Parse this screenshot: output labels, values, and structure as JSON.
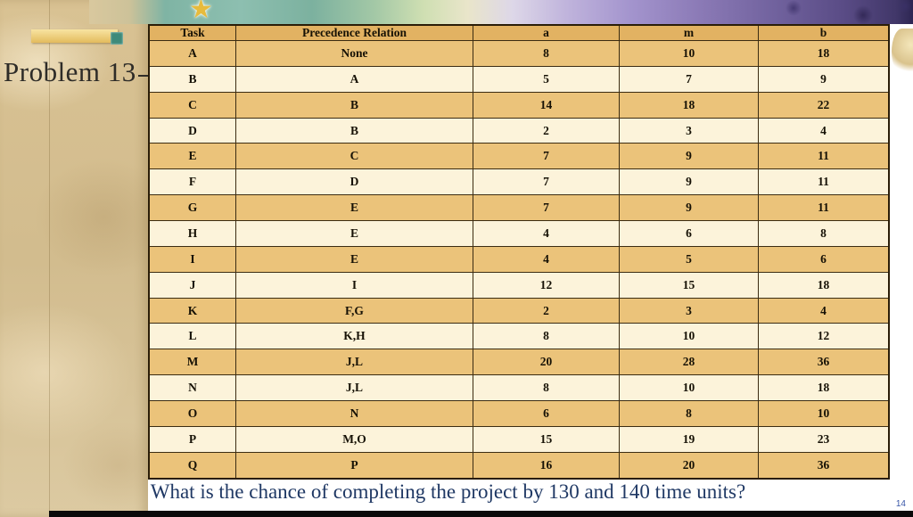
{
  "slide": {
    "title": "Problem 13",
    "question": "What is the chance of completing the project by 130 and 140 time units?",
    "page_number": "14"
  },
  "icons": {
    "star": "★"
  },
  "table": {
    "headers": [
      "Task",
      "Precedence Relation",
      "a",
      "m",
      "b"
    ],
    "rows": [
      [
        "A",
        "None",
        "8",
        "10",
        "18"
      ],
      [
        "B",
        "A",
        "5",
        "7",
        "9"
      ],
      [
        "C",
        "B",
        "14",
        "18",
        "22"
      ],
      [
        "D",
        "B",
        "2",
        "3",
        "4"
      ],
      [
        "E",
        "C",
        "7",
        "9",
        "11"
      ],
      [
        "F",
        "D",
        "7",
        "9",
        "11"
      ],
      [
        "G",
        "E",
        "7",
        "9",
        "11"
      ],
      [
        "H",
        "E",
        "4",
        "6",
        "8"
      ],
      [
        "I",
        "E",
        "4",
        "5",
        "6"
      ],
      [
        "J",
        "I",
        "12",
        "15",
        "18"
      ],
      [
        "K",
        "F,G",
        "2",
        "3",
        "4"
      ],
      [
        "L",
        "K,H",
        "8",
        "10",
        "12"
      ],
      [
        "M",
        "J,L",
        "20",
        "28",
        "36"
      ],
      [
        "N",
        "J,L",
        "8",
        "10",
        "18"
      ],
      [
        "O",
        "N",
        "6",
        "8",
        "10"
      ],
      [
        "P",
        "M,O",
        "15",
        "19",
        "23"
      ],
      [
        "Q",
        "P",
        "16",
        "20",
        "36"
      ]
    ]
  },
  "colors": {
    "header_row_bg": "#e2b262",
    "odd_row_bg": "#ebc37a",
    "even_row_bg": "#fcf3da",
    "table_border": "#3b2c12",
    "question_text": "#1f3864",
    "title_text": "#2e2c28",
    "parchment": "#d6c094",
    "accent_teal": "#3e8a7a",
    "accent_gold": "#e8c35f"
  }
}
